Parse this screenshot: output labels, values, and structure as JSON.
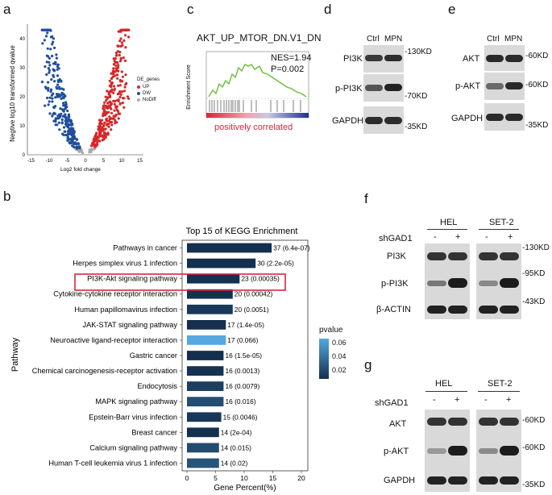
{
  "panels": {
    "a": {
      "letter": "a",
      "ylabel": "Negtive log10 transformed qvalue",
      "xlabel": "Log2 fold change",
      "x_ticks": [
        "-15",
        "-10",
        "-5",
        "0",
        "5",
        "10",
        "15"
      ],
      "y_ticks": [
        "0",
        "10",
        "20",
        "30",
        "40"
      ],
      "legend_title": "DE_genes",
      "legend_items": [
        {
          "label": "UP",
          "color": "#d62728"
        },
        {
          "label": "DW",
          "color": "#1f4e9c"
        },
        {
          "label": "NoDiff",
          "color": "#aaaaaa"
        }
      ]
    },
    "c": {
      "letter": "c",
      "title": "AKT_UP_MTOR_DN.V1_DN",
      "ylabel": "Enrichment Score",
      "nes": "NES=1.94",
      "p": "P=0.002",
      "caption": "positively correlated"
    },
    "d": {
      "letter": "d",
      "lanes": [
        "Ctrl",
        "MPN"
      ],
      "rows": [
        {
          "label": "PI3K",
          "marker": "-130KD"
        },
        {
          "label": "p-PI3K",
          "marker": "-70KD"
        },
        {
          "label": "GAPDH",
          "marker": "-35KD"
        }
      ]
    },
    "e": {
      "letter": "e",
      "lanes": [
        "Ctrl",
        "MPN"
      ],
      "rows": [
        {
          "label": "AKT",
          "marker": "-60KD"
        },
        {
          "label": "p-AKT",
          "marker": "-60KD"
        },
        {
          "label": "GAPDH",
          "marker": "-35KD"
        }
      ]
    },
    "b": {
      "letter": "b",
      "highlight": "PI3K-Akt signaling pathway"
    },
    "f": {
      "letter": "f",
      "groups": [
        "HEL",
        "SET-2"
      ],
      "treatment": "shGAD1",
      "signs": [
        "-",
        "+",
        "-",
        "+"
      ],
      "rows": [
        {
          "label": "PI3K",
          "marker": "-130KD"
        },
        {
          "label": "p-PI3K",
          "marker": "-95KD"
        },
        {
          "label": "β-ACTIN",
          "marker": "-43KD"
        }
      ]
    },
    "g": {
      "letter": "g",
      "groups": [
        "HEL",
        "SET-2"
      ],
      "treatment": "shGAD1",
      "signs": [
        "-",
        "+",
        "-",
        "+"
      ],
      "rows": [
        {
          "label": "AKT",
          "marker": "-60KD"
        },
        {
          "label": "p-AKT",
          "marker": "-60KD"
        },
        {
          "label": "GAPDH",
          "marker": "-35KD"
        }
      ]
    }
  },
  "chart_data": {
    "type": "bar",
    "orientation": "horizontal",
    "title": "Top 15 of KEGG Enrichment",
    "xlabel": "Gene Percent(%)",
    "ylabel": "Pathway",
    "x_ticks": [
      "0",
      "5",
      "10",
      "15",
      "20"
    ],
    "xlim": [
      0,
      20
    ],
    "categories": [
      "Pathways in cancer",
      "Herpes simplex virus 1 infection",
      "PI3K-Akt signaling pathway",
      "Cytokine-cytokine receptor interaction",
      "Human papillomavirus infection",
      "JAK-STAT signaling pathway",
      "Neuroactive ligand-receptor interaction",
      "Gastric cancer",
      "Chemical carcinogenesis-receptor activation",
      "Endocytosis",
      "MAPK signaling pathway",
      "Epstein-Barr virus infection",
      "Breast cancer",
      "Calcium signaling pathway",
      "Human T-cell leukemia virus 1 infection"
    ],
    "values": [
      14.8,
      12.0,
      9.2,
      8.0,
      8.0,
      6.8,
      6.8,
      6.4,
      6.4,
      6.4,
      6.4,
      6.0,
      5.6,
      5.6,
      5.6
    ],
    "labels": [
      "37 (6.4e-07)",
      "30 (2.2e-05)",
      "23 (0.00035)",
      "20 (0.00042)",
      "20 (0.0051)",
      "17 (1.4e-05)",
      "17 (0.066)",
      "16 (1.5e-05)",
      "16 (0.0013)",
      "16 (0.0079)",
      "16 (0.016)",
      "15 (0.0046)",
      "14 (2e-04)",
      "14 (0.015)",
      "14 (0.02)"
    ],
    "pvalues": [
      6.4e-07,
      2.2e-05,
      0.00035,
      0.00042,
      0.0051,
      1.4e-05,
      0.066,
      1.5e-05,
      0.0013,
      0.0079,
      0.016,
      0.0046,
      0.0002,
      0.015,
      0.02
    ],
    "legend": {
      "title": "pvalue",
      "ticks": [
        "0.06",
        "0.04",
        "0.02"
      ],
      "low_color": "#14304f",
      "high_color": "#56a8e0"
    }
  }
}
